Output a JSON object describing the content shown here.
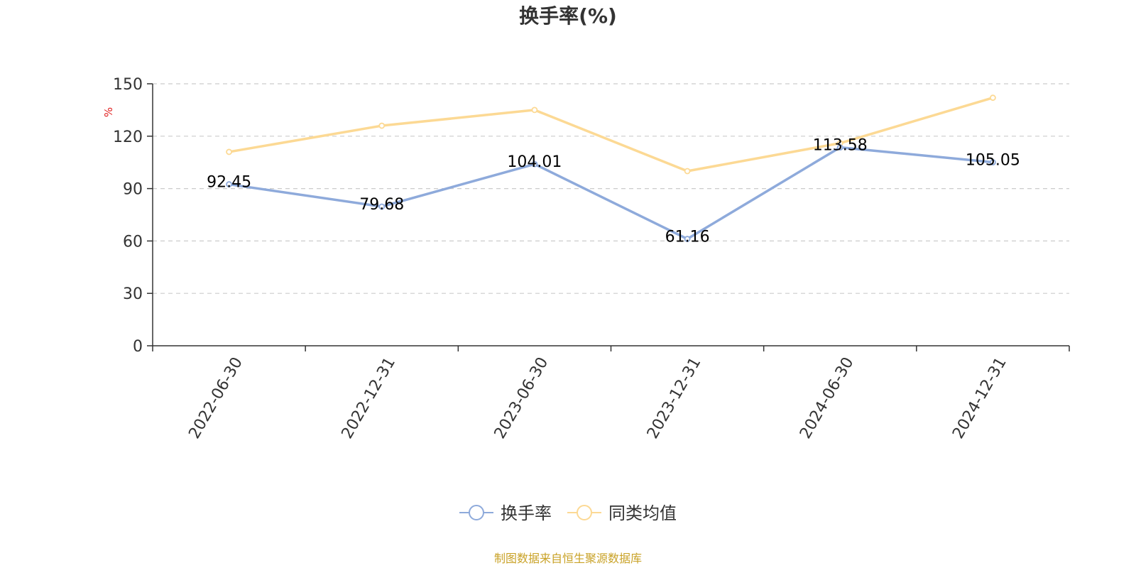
{
  "chart_data": {
    "type": "line",
    "title": "换手率(%)",
    "ylabel": "%",
    "xlabel": "",
    "ylim": [
      0,
      150
    ],
    "yticks": [
      0,
      30,
      60,
      90,
      120,
      150
    ],
    "grid": true,
    "categories": [
      "2022-06-30",
      "2022-12-31",
      "2023-06-30",
      "2023-12-31",
      "2024-06-30",
      "2024-12-31"
    ],
    "series": [
      {
        "name": "换手率",
        "color": "#8eaadb",
        "values": [
          92.45,
          79.68,
          104.01,
          61.16,
          113.58,
          105.05
        ],
        "labels": [
          "92.45",
          "79.68",
          "104.01",
          "61.16",
          "113.58",
          "105.05"
        ],
        "show_labels": true
      },
      {
        "name": "同类均值",
        "color": "#fcd994",
        "values": [
          111,
          126,
          135,
          100,
          116,
          142
        ],
        "show_labels": false
      }
    ],
    "legend_position": "bottom-center",
    "ylabel_color": "#e02020"
  },
  "footer": {
    "source": "制图数据来自恒生聚源数据库",
    "source_color": "#c9a227"
  }
}
